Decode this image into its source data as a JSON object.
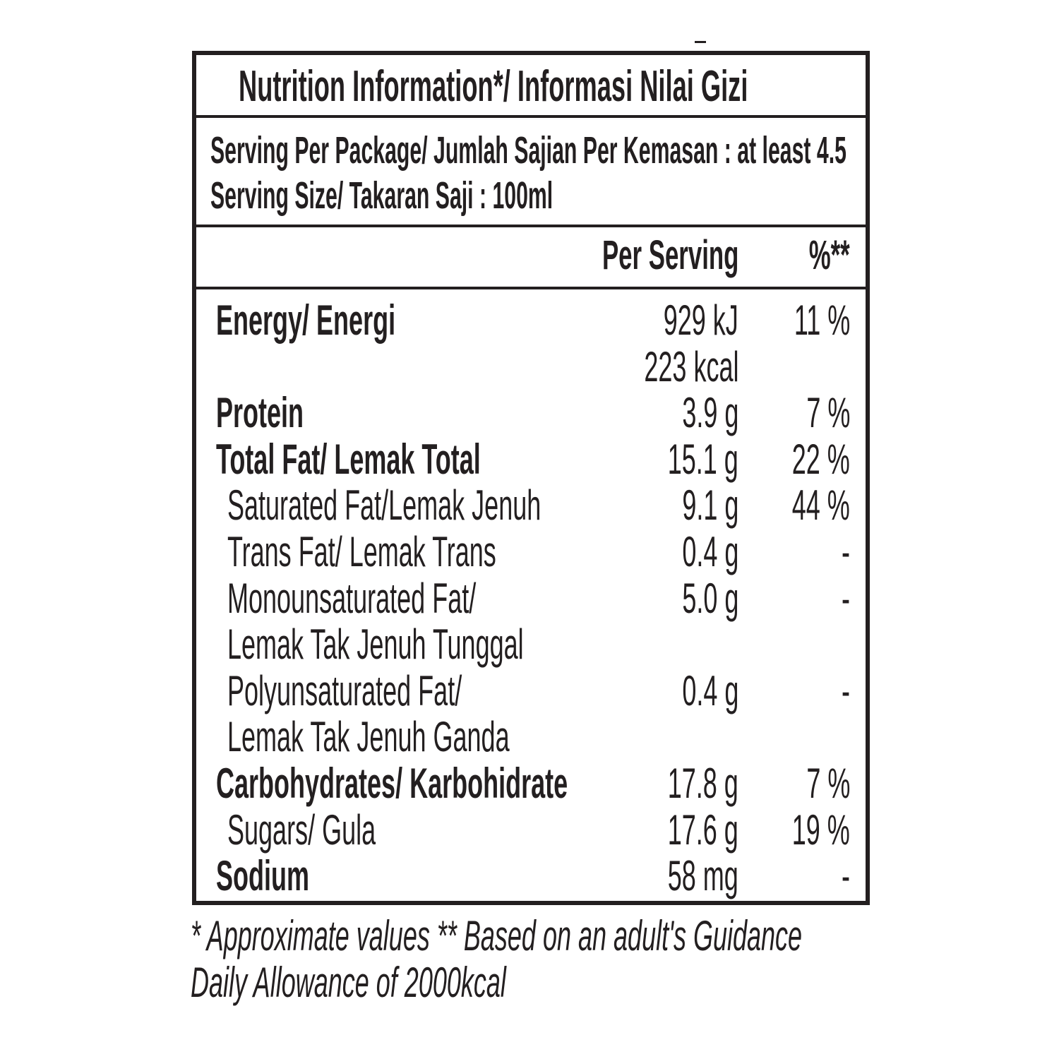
{
  "title": "Nutrition Information*/ Informasi Nilai Gizi",
  "serving_per_package": "Serving Per Package/ Jumlah Sajian Per Kemasan :  at least  4.5",
  "serving_size": "Serving Size/ Takaran Saji : 100ml",
  "header": {
    "per_serving": "Per Serving",
    "percent": "%**"
  },
  "rows": [
    {
      "label": "Energy/ Energi",
      "value": "929 kJ",
      "percent": "11 %",
      "bold": true
    },
    {
      "label": "",
      "value": "223 kcal",
      "percent": "",
      "bold": false
    },
    {
      "label": "Protein",
      "value": "3.9 g",
      "percent": "7 %",
      "bold": true
    },
    {
      "label": "Total Fat/ Lemak Total",
      "value": "15.1 g",
      "percent": "22 %",
      "bold": true
    },
    {
      "label": "Saturated Fat/Lemak Jenuh",
      "value": "9.1 g",
      "percent": "44 %",
      "bold": false
    },
    {
      "label": "Trans Fat/ Lemak Trans",
      "value": "0.4 g",
      "percent": "-",
      "bold": false
    },
    {
      "label": "Monounsaturated Fat/",
      "value": "5.0 g",
      "percent": "-",
      "bold": false
    },
    {
      "label": "Lemak Tak Jenuh Tunggal",
      "value": "",
      "percent": "",
      "bold": false
    },
    {
      "label": "Polyunsaturated Fat/",
      "value": "0.4 g",
      "percent": "-",
      "bold": false
    },
    {
      "label": "Lemak Tak Jenuh Ganda",
      "value": "",
      "percent": "",
      "bold": false
    },
    {
      "label": "Carbohydrates/ Karbohidrate",
      "value": "17.8 g",
      "percent": "7 %",
      "bold": true
    },
    {
      "label": "Sugars/ Gula",
      "value": "17.6 g",
      "percent": "19 %",
      "bold": false
    },
    {
      "label": "Sodium",
      "value": "58 mg",
      "percent": "-",
      "bold": true
    }
  ],
  "footnote": {
    "line1": "* Approximate values  ** Based on an adult's Guidance",
    "line2": "Daily Allowance of 2000kcal"
  }
}
